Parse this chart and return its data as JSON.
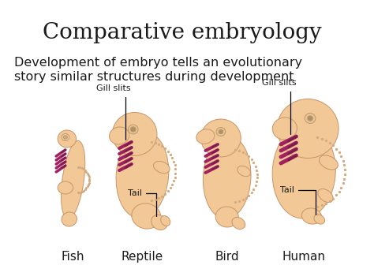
{
  "title": "Comparative embryology",
  "subtitle_line1": "Development of embryo tells an evolutionary",
  "subtitle_line2": "story similar structures during development",
  "labels": [
    "Fish",
    "Reptile",
    "Bird",
    "Human"
  ],
  "annotations_top": [
    "Gill slits",
    "Gill slits"
  ],
  "annotations_bottom": [
    "Tail",
    "Tail"
  ],
  "bg_color": "#ffffff",
  "title_fontsize": 20,
  "subtitle_fontsize": 11.5,
  "label_fontsize": 11,
  "annotation_fontsize": 8,
  "title_color": "#1a1a1a",
  "subtitle_color": "#1a1a1a",
  "label_color": "#1a1a1a",
  "embryo_fill": "#f2c896",
  "embryo_fill2": "#edb87a",
  "embryo_edge": "#c8956a",
  "gill_color": "#7b1c4a",
  "gill_color2": "#a02060",
  "dot_color": "#d4aa80"
}
